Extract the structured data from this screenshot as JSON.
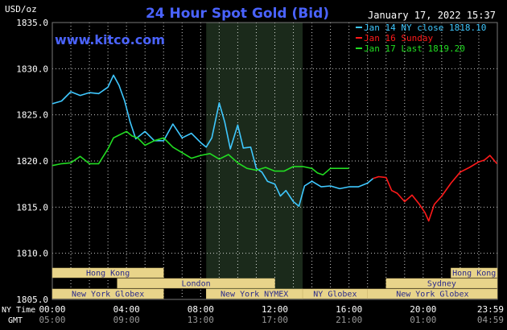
{
  "header": {
    "title": "24 Hour Spot Gold (Bid)",
    "unit": "USD/oz",
    "timestamp": "January 17, 2022 15:37",
    "brand": "www.kitco.com"
  },
  "row_labels": {
    "ny": "NY Time",
    "gmt": "GMT"
  },
  "colors": {
    "background": "#000000",
    "grid": "#ffffff",
    "axis_text": "#ffffff",
    "title": "#4a63ff",
    "brand": "#4a63ff",
    "highlight": "#1b2a1b",
    "jan14": "#3fc8ff",
    "jan16": "#ff1a1a",
    "jan17": "#22dd22",
    "session_bg": "#e8d48a",
    "session_text": "#2a2a8a"
  },
  "legend": [
    {
      "text": "Jan 14 NY close 1818.10",
      "color": "#3fc8ff"
    },
    {
      "text": "Jan 16 Sunday",
      "color": "#ff1a1a"
    },
    {
      "text": "Jan 17 Last 1819.20",
      "color": "#22dd22"
    }
  ],
  "sessions": [
    {
      "name": "Hong Kong",
      "row": 0,
      "start": 0,
      "end": 6
    },
    {
      "name": "Hong Kong",
      "row": 0,
      "start": 21.5,
      "end": 24
    },
    {
      "name": "London",
      "row": 1,
      "start": 3.5,
      "end": 12
    },
    {
      "name": "Sydney",
      "row": 1,
      "start": 18,
      "end": 24
    },
    {
      "name": "New York Globex",
      "row": 2,
      "start": 0,
      "end": 6
    },
    {
      "name": "New York NYMEX",
      "row": 2,
      "start": 8.3,
      "end": 13.5
    },
    {
      "name": "NY Globex",
      "row": 2,
      "start": 13.5,
      "end": 17
    },
    {
      "name": "New York Globex",
      "row": 2,
      "start": 17,
      "end": 24
    }
  ],
  "chart_data": {
    "type": "line",
    "title": "24 Hour Spot Gold (Bid)",
    "ylabel": "USD/oz",
    "ylim": [
      1805,
      1835
    ],
    "xlim": [
      0,
      24
    ],
    "grid": true,
    "legend_position": "top-right",
    "highlight_range": [
      8.3,
      13.5
    ],
    "x_ticks_ny": [
      "00:00",
      "04:00",
      "08:00",
      "12:00",
      "16:00",
      "20:00",
      "23:59"
    ],
    "x_ticks_gmt": [
      "05:00",
      "09:00",
      "13:00",
      "17:00",
      "21:00",
      "01:00",
      "04:59"
    ],
    "y_ticks": [
      "1835.0",
      "1830.0",
      "1825.0",
      "1820.0",
      "1815.0",
      "1810.0",
      "1805.0"
    ],
    "series": [
      {
        "name": "Jan 14 NY close 1818.10",
        "color": "#3fc8ff",
        "x": [
          0,
          0.5,
          1,
          1.5,
          2,
          2.5,
          3,
          3.3,
          3.6,
          3.9,
          4.2,
          4.5,
          5,
          5.5,
          6,
          6.5,
          7,
          7.5,
          8,
          8.3,
          8.6,
          9,
          9.3,
          9.6,
          10,
          10.3,
          10.7,
          11,
          11.3,
          11.6,
          12,
          12.3,
          12.6,
          13,
          13.3,
          13.6,
          14,
          14.5,
          15,
          15.5,
          16,
          16.5,
          17,
          17.3
        ],
        "y": [
          1826.2,
          1826.5,
          1827.5,
          1827.1,
          1827.4,
          1827.3,
          1828,
          1829.3,
          1828.2,
          1826.5,
          1824.2,
          1822.4,
          1823.2,
          1822.2,
          1822.2,
          1824,
          1822.5,
          1823,
          1822,
          1821.5,
          1822.5,
          1826.3,
          1824.2,
          1821.3,
          1823.9,
          1821.4,
          1821.5,
          1819.2,
          1818.8,
          1817.8,
          1817.5,
          1816.2,
          1816.8,
          1815.6,
          1815.1,
          1817.3,
          1817.8,
          1817.2,
          1817.3,
          1817,
          1817.2,
          1817.2,
          1817.6,
          1818.1
        ]
      },
      {
        "name": "Jan 16 Sunday",
        "color": "#ff1a1a",
        "x": [
          17.3,
          17.6,
          18,
          18.3,
          18.6,
          19,
          19.4,
          19.8,
          20.1,
          20.3,
          20.6,
          21,
          21.5,
          22,
          22.5,
          23,
          23.3,
          23.6,
          23.98
        ],
        "y": [
          1818.1,
          1818.3,
          1818.2,
          1816.8,
          1816.5,
          1815.6,
          1816.3,
          1815.3,
          1814.4,
          1813.5,
          1815.3,
          1816.2,
          1817.6,
          1818.8,
          1819.3,
          1819.9,
          1820.1,
          1820.6,
          1819.7
        ]
      },
      {
        "name": "Jan 17 Last 1819.20",
        "color": "#22dd22",
        "x": [
          0,
          0.5,
          1,
          1.5,
          2,
          2.5,
          3,
          3.3,
          3.6,
          4,
          4.3,
          4.6,
          5,
          5.5,
          6,
          6.5,
          7,
          7.5,
          8,
          8.5,
          9,
          9.5,
          10,
          10.5,
          11,
          11.5,
          12,
          12.5,
          13,
          13.5,
          14,
          14.3,
          14.6,
          15,
          15.5,
          16
        ],
        "y": [
          1819.5,
          1819.7,
          1819.8,
          1820.5,
          1819.7,
          1819.7,
          1821.3,
          1822.5,
          1822.8,
          1823.2,
          1822.7,
          1822.5,
          1821.7,
          1822.2,
          1822.5,
          1821.5,
          1820.9,
          1820.3,
          1820.6,
          1820.8,
          1820.2,
          1820.7,
          1819.8,
          1819.2,
          1819.0,
          1819.3,
          1818.9,
          1818.9,
          1819.4,
          1819.4,
          1819.2,
          1818.7,
          1818.5,
          1819.2,
          1819.2,
          1819.2
        ]
      }
    ]
  }
}
